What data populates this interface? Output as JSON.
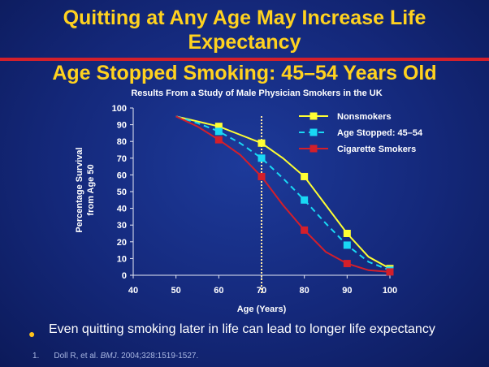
{
  "slide": {
    "title_line1": "Quitting at Any Age May Increase Life",
    "title_line2": "Expectancy",
    "subtitle": "Age Stopped Smoking: 45–54 Years Old",
    "bullet": "Even quitting smoking later in life can lead to longer life expectancy",
    "ref_number": "1.",
    "ref_text_pre": "Doll R, et al. ",
    "ref_journal": "BMJ",
    "ref_text_post": ". 2004;328:1519-1527."
  },
  "colors": {
    "title": "#ffd21f",
    "nonsmokers": "#ffff33",
    "quit": "#19d8f5",
    "smokers": "#d41f2a",
    "marker_line": "#ffe9a8"
  },
  "chart_data": {
    "type": "line",
    "title": "Results From a Study of Male Physician Smokers in the UK",
    "xlabel": "Age (Years)",
    "ylabel_line1": "Percentage Survival",
    "ylabel_line2": "from Age 50",
    "xlim": [
      40,
      100
    ],
    "ylim": [
      0,
      100
    ],
    "xticks": [
      40,
      50,
      60,
      70,
      80,
      90,
      100
    ],
    "yticks": [
      0,
      10,
      20,
      30,
      40,
      50,
      60,
      70,
      80,
      90,
      100
    ],
    "vertical_marker_x": 70,
    "legend_position": "top-right",
    "series": [
      {
        "name": "Nonsmokers",
        "key": "nonsmokers",
        "style": "solid",
        "x": [
          50,
          55,
          60,
          65,
          70,
          75,
          80,
          85,
          90,
          95,
          100
        ],
        "y": [
          95,
          92,
          89,
          84,
          79,
          70,
          59,
          42,
          25,
          11,
          4
        ],
        "marker_x": [
          60,
          70,
          80,
          90,
          100
        ],
        "marker_y": [
          89,
          79,
          59,
          25,
          4
        ]
      },
      {
        "name": "Age Stopped: 45–54",
        "key": "quit",
        "style": "dashed",
        "x": [
          50,
          55,
          60,
          65,
          70,
          75,
          80,
          85,
          90,
          95,
          100
        ],
        "y": [
          95,
          91,
          86,
          79,
          70,
          58,
          45,
          31,
          18,
          8,
          3
        ],
        "marker_x": [
          60,
          70,
          80,
          90,
          100
        ],
        "marker_y": [
          86,
          70,
          45,
          18,
          3
        ]
      },
      {
        "name": "Cigarette Smokers",
        "key": "smokers",
        "style": "solid",
        "x": [
          50,
          55,
          60,
          65,
          70,
          75,
          80,
          85,
          90,
          95,
          100
        ],
        "y": [
          95,
          89,
          81,
          72,
          59,
          42,
          27,
          14,
          7,
          3,
          2
        ],
        "marker_x": [
          60,
          70,
          80,
          90,
          100
        ],
        "marker_y": [
          81,
          59,
          27,
          7,
          2
        ]
      }
    ]
  }
}
